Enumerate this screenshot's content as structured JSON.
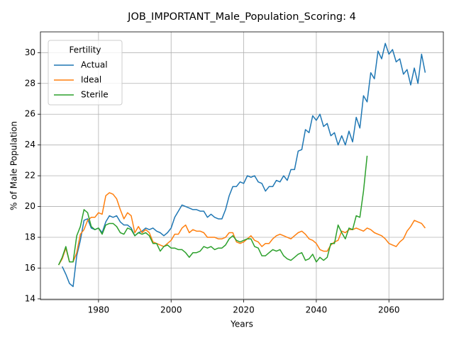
{
  "chart_data": {
    "type": "line",
    "title": "JOB_IMPORTANT_Male_Population_Scoring: 4",
    "x_label": "Years",
    "y_label": "% of Male Population",
    "legend_title": "Fertility",
    "legend": "upper left",
    "grid": true,
    "xlim": [
      1964,
      2075
    ],
    "ylim": [
      13.95,
      31.35
    ],
    "xticks": [
      1980,
      2000,
      2020,
      2040,
      2060
    ],
    "yticks": [
      14,
      16,
      18,
      20,
      22,
      24,
      26,
      28,
      30
    ],
    "x": [
      1969,
      1970,
      1971,
      1972,
      1973,
      1974,
      1975,
      1976,
      1977,
      1978,
      1979,
      1980,
      1981,
      1982,
      1983,
      1984,
      1985,
      1986,
      1987,
      1988,
      1989,
      1990,
      1991,
      1992,
      1993,
      1994,
      1995,
      1996,
      1997,
      1998,
      1999,
      2000,
      2001,
      2002,
      2003,
      2004,
      2005,
      2006,
      2007,
      2008,
      2009,
      2010,
      2011,
      2012,
      2013,
      2014,
      2015,
      2016,
      2017,
      2018,
      2019,
      2020,
      2021,
      2022,
      2023,
      2024,
      2025,
      2026,
      2027,
      2028,
      2029,
      2030,
      2031,
      2032,
      2033,
      2034,
      2035,
      2036,
      2037,
      2038,
      2039,
      2040,
      2041,
      2042,
      2043,
      2044,
      2045,
      2046,
      2047,
      2048,
      2049,
      2050,
      2051,
      2052,
      2053,
      2054,
      2055,
      2056,
      2057,
      2058,
      2059,
      2060,
      2061,
      2062,
      2063,
      2064,
      2065,
      2066,
      2067,
      2068,
      2069,
      2070
    ],
    "series": [
      {
        "name": "Actual",
        "color": "#1f77b4",
        "values": [
          null,
          16.1,
          15.6,
          15.0,
          14.8,
          16.8,
          17.8,
          19.1,
          19.2,
          18.6,
          18.5,
          18.6,
          18.3,
          19.0,
          19.4,
          19.3,
          19.4,
          19.0,
          18.8,
          18.8,
          18.6,
          18.1,
          18.3,
          18.4,
          18.6,
          18.5,
          18.6,
          18.4,
          18.3,
          18.1,
          18.3,
          18.6,
          19.3,
          19.7,
          20.1,
          20.0,
          19.9,
          19.8,
          19.8,
          19.7,
          19.7,
          19.3,
          19.5,
          19.3,
          19.2,
          19.2,
          19.8,
          20.7,
          21.3,
          21.3,
          21.6,
          21.5,
          22.0,
          21.9,
          22.0,
          21.6,
          21.5,
          21.0,
          21.3,
          21.3,
          21.7,
          21.6,
          22.0,
          21.7,
          22.4,
          22.4,
          23.6,
          23.7,
          25.0,
          24.8,
          25.9,
          25.6,
          26.0,
          25.2,
          25.4,
          24.6,
          24.8,
          24.0,
          24.6,
          24.0,
          24.9,
          24.2,
          25.8,
          25.1,
          27.2,
          26.8,
          28.7,
          28.3,
          30.1,
          29.6,
          30.6,
          29.9,
          30.2,
          29.4,
          29.6,
          28.6,
          28.9,
          27.9,
          29.0,
          28.0,
          29.9,
          28.7
        ]
      },
      {
        "name": "Ideal",
        "color": "#ff7f0e",
        "values": [
          16.2,
          16.6,
          17.3,
          16.4,
          16.4,
          17.0,
          18.2,
          18.5,
          19.1,
          19.3,
          19.3,
          19.6,
          19.5,
          20.7,
          20.9,
          20.8,
          20.5,
          19.8,
          19.2,
          19.6,
          19.4,
          18.3,
          18.7,
          18.3,
          18.5,
          18.3,
          17.7,
          17.6,
          17.5,
          17.4,
          17.6,
          17.8,
          18.2,
          18.2,
          18.6,
          18.8,
          18.3,
          18.5,
          18.4,
          18.4,
          18.3,
          18.0,
          18.0,
          18.0,
          17.9,
          17.9,
          18.0,
          18.3,
          18.3,
          17.7,
          17.6,
          17.7,
          17.9,
          18.1,
          17.8,
          17.7,
          17.4,
          17.6,
          17.6,
          17.9,
          18.1,
          18.2,
          18.1,
          18.0,
          17.9,
          18.1,
          18.3,
          18.4,
          18.2,
          17.9,
          17.8,
          17.6,
          17.2,
          17.1,
          17.1,
          17.5,
          17.7,
          17.8,
          18.4,
          18.3,
          18.5,
          18.5,
          18.6,
          18.5,
          18.4,
          18.6,
          18.5,
          18.3,
          18.2,
          18.1,
          17.9,
          17.6,
          17.5,
          17.4,
          17.7,
          17.9,
          18.4,
          18.7,
          19.1,
          19.0,
          18.9,
          18.6
        ]
      },
      {
        "name": "Sterile",
        "color": "#2ca02c",
        "values": [
          16.2,
          16.7,
          17.4,
          16.4,
          16.4,
          18.1,
          18.7,
          19.8,
          19.6,
          18.7,
          18.5,
          18.6,
          18.2,
          18.8,
          18.9,
          18.9,
          18.7,
          18.3,
          18.2,
          18.6,
          18.5,
          18.1,
          18.3,
          18.2,
          18.3,
          18.1,
          17.6,
          17.6,
          17.1,
          17.4,
          17.5,
          17.3,
          17.3,
          17.2,
          17.2,
          17.0,
          16.7,
          17.0,
          17.0,
          17.1,
          17.4,
          17.3,
          17.4,
          17.2,
          17.3,
          17.3,
          17.5,
          17.9,
          18.1,
          17.8,
          17.7,
          17.8,
          17.9,
          17.9,
          17.4,
          17.3,
          16.8,
          16.8,
          17.0,
          17.2,
          17.1,
          17.2,
          16.8,
          16.6,
          16.5,
          16.7,
          16.9,
          17.0,
          16.5,
          16.6,
          16.9,
          16.4,
          16.7,
          16.5,
          16.7,
          17.6,
          17.6,
          18.8,
          18.3,
          17.9,
          18.6,
          18.5,
          19.4,
          19.3,
          21.0,
          23.3,
          null,
          null,
          null,
          null,
          null,
          null,
          null,
          null,
          null,
          null,
          null,
          null,
          null,
          null,
          null,
          null
        ]
      }
    ]
  }
}
